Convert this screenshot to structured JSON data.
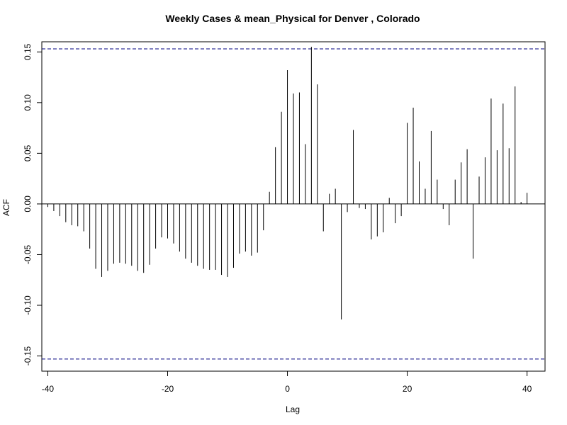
{
  "chart_data": {
    "type": "bar",
    "title": "Weekly Cases & mean_Physical for Denver , Colorado",
    "xlabel": "Lag",
    "ylabel": "ACF",
    "xlim": [
      -41,
      43
    ],
    "ylim": [
      -0.165,
      0.16
    ],
    "xticks": [
      -40,
      -20,
      0,
      20,
      40
    ],
    "xtick_labels": [
      "-40",
      "-20",
      "0",
      "20",
      "40"
    ],
    "yticks": [
      -0.15,
      -0.1,
      -0.05,
      0.0,
      0.05,
      0.1,
      0.15
    ],
    "ytick_labels": [
      "-0.15",
      "-0.10",
      "-0.05",
      "0.00",
      "0.05",
      "0.10",
      "0.15"
    ],
    "confidence_bounds": [
      0.153,
      -0.153
    ],
    "bound_color": "#000080",
    "grid": false,
    "x": [
      -40,
      -39,
      -38,
      -37,
      -36,
      -35,
      -34,
      -33,
      -32,
      -31,
      -30,
      -29,
      -28,
      -27,
      -26,
      -25,
      -24,
      -23,
      -22,
      -21,
      -20,
      -19,
      -18,
      -17,
      -16,
      -15,
      -14,
      -13,
      -12,
      -11,
      -10,
      -9,
      -8,
      -7,
      -6,
      -5,
      -4,
      -3,
      -2,
      -1,
      0,
      1,
      2,
      3,
      4,
      5,
      6,
      7,
      8,
      9,
      10,
      11,
      12,
      13,
      14,
      15,
      16,
      17,
      18,
      19,
      20,
      21,
      22,
      23,
      24,
      25,
      26,
      27,
      28,
      29,
      30,
      31,
      32,
      33,
      34,
      35,
      36,
      37,
      38,
      39,
      40
    ],
    "values": [
      -0.003,
      -0.007,
      -0.012,
      -0.018,
      -0.021,
      -0.022,
      -0.027,
      -0.044,
      -0.064,
      -0.072,
      -0.066,
      -0.059,
      -0.058,
      -0.059,
      -0.061,
      -0.066,
      -0.068,
      -0.06,
      -0.044,
      -0.033,
      -0.034,
      -0.039,
      -0.047,
      -0.054,
      -0.058,
      -0.061,
      -0.064,
      -0.065,
      -0.065,
      -0.07,
      -0.072,
      -0.063,
      -0.049,
      -0.047,
      -0.051,
      -0.048,
      -0.026,
      0.012,
      0.056,
      0.091,
      0.132,
      0.109,
      0.11,
      0.059,
      0.155,
      0.118,
      -0.027,
      0.01,
      0.015,
      -0.114,
      -0.008,
      0.073,
      -0.004,
      -0.005,
      -0.035,
      -0.032,
      -0.028,
      0.006,
      -0.019,
      -0.012,
      0.08,
      0.095,
      0.042,
      0.015,
      0.072,
      0.024,
      -0.005,
      -0.021,
      0.024,
      0.041,
      0.054,
      -0.054,
      0.027,
      0.046,
      0.104,
      0.053,
      0.099,
      0.055,
      0.116,
      0.002,
      0.011
    ]
  }
}
